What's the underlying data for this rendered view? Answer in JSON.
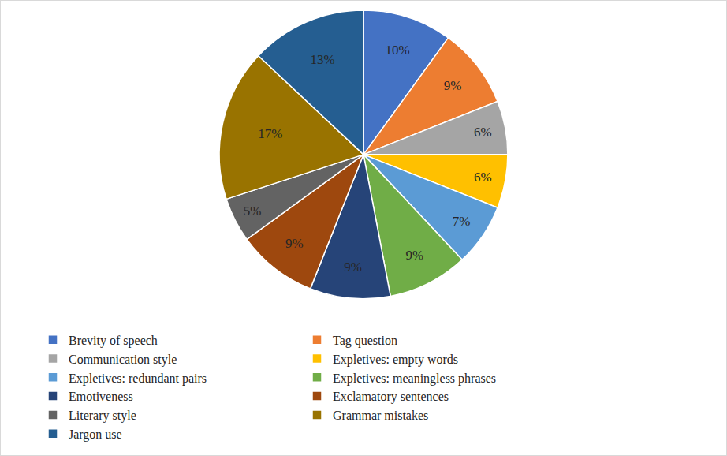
{
  "chart_data": {
    "type": "pie",
    "categories": [
      "Brevity of speech",
      "Tag question",
      "Communication style",
      "Expletives: empty words",
      "Expletives: redundant pairs",
      "Expletives: meaningless phrases",
      "Emotiveness",
      "Exclamatory sentences",
      "Literary style",
      "Grammar mistakes",
      "Jargon use"
    ],
    "values": [
      10,
      9,
      6,
      6,
      7,
      9,
      9,
      9,
      5,
      17,
      13
    ],
    "value_labels": [
      "10%",
      "9%",
      "6%",
      "6%",
      "7%",
      "9%",
      "9%",
      "9%",
      "5%",
      "17%",
      "13%"
    ],
    "colors": [
      "#4472c4",
      "#ed7d31",
      "#a5a5a5",
      "#ffc000",
      "#5b9bd5",
      "#70ad47",
      "#264478",
      "#9e480e",
      "#636363",
      "#997300",
      "#255e91"
    ],
    "data_labels": true,
    "legend": "bottom"
  }
}
